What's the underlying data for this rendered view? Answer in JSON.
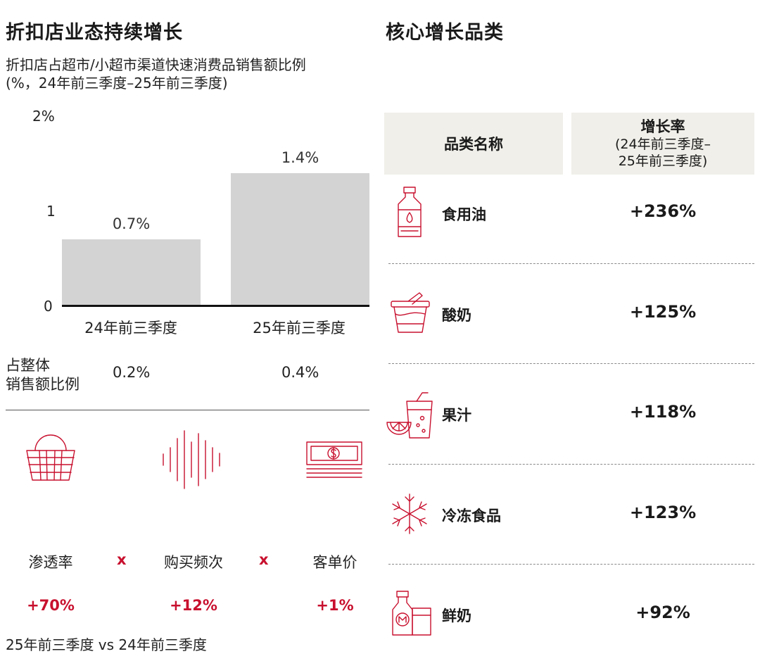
{
  "left": {
    "title": "折扣店业态持续增长",
    "subtitle_line1": "折扣店占超市/小超市渠道快速消费品销售额比例",
    "subtitle_line2": "(%，24年前三季度–25年前三季度)",
    "share_label_line1": "占整体",
    "share_label_line2": "销售额比例",
    "footnote": "25年前三季度 vs 24年前三季度"
  },
  "chart_data": {
    "type": "bar",
    "categories": [
      "24年前三季度",
      "25年前三季度"
    ],
    "values": [
      0.7,
      1.4
    ],
    "value_labels": [
      "0.7%",
      "1.4%"
    ],
    "y_ticks": [
      "0",
      "1",
      "2%"
    ],
    "ylim": [
      0,
      2
    ],
    "bar_color": "#d3d3d3",
    "share_of_total": [
      "0.2%",
      "0.4%"
    ]
  },
  "metrics": {
    "items": [
      {
        "label": "渗透率",
        "change": "+70%",
        "icon": "basket-icon"
      },
      {
        "label": "购买频次",
        "change": "+12%",
        "icon": "sound-wave-icon"
      },
      {
        "label": "客单价",
        "change": "+1%",
        "icon": "cash-icon"
      }
    ],
    "operator": "x",
    "accent": "#c8102e"
  },
  "right": {
    "title": "核心增长品类",
    "table": {
      "header_name": "品类名称",
      "header_rate_line1": "增长率",
      "header_rate_line2": "(24年前三季度–",
      "header_rate_line3": "25年前三季度)",
      "header_bg": "#f0efe9",
      "rows": [
        {
          "name": "食用油",
          "rate": "+236%",
          "icon": "oil-bottle-icon"
        },
        {
          "name": "酸奶",
          "rate": "+125%",
          "icon": "yogurt-cup-icon"
        },
        {
          "name": "果汁",
          "rate": "+118%",
          "icon": "juice-icon"
        },
        {
          "name": "冷冻食品",
          "rate": "+123%",
          "icon": "snowflake-icon"
        },
        {
          "name": "鲜奶",
          "rate": "+92%",
          "icon": "milk-bottle-icon"
        }
      ]
    }
  }
}
